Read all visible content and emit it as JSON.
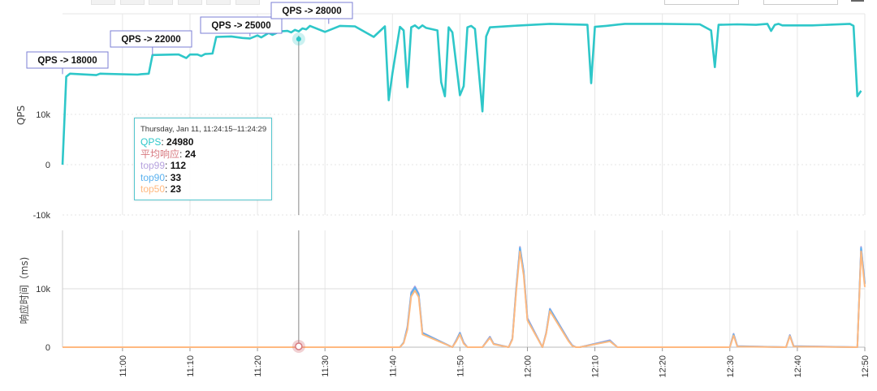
{
  "chart_data": [
    {
      "type": "line",
      "ylabel": "QPS",
      "ylim": [
        -10000,
        30000
      ],
      "y_ticks": [
        {
          "value": 10000,
          "label": "10k"
        },
        {
          "value": 0,
          "label": "0"
        },
        {
          "value": -10000,
          "label": "-10k"
        }
      ],
      "grid": true,
      "series": [
        {
          "name": "QPS",
          "color": "#2ec7c9",
          "x": [
            0,
            1,
            2,
            9,
            10,
            20,
            21,
            23,
            24,
            30,
            31,
            33,
            34,
            36,
            37,
            38,
            40,
            41,
            45,
            48,
            50,
            52,
            53,
            55,
            56,
            58,
            60,
            61,
            62,
            63,
            64,
            65,
            66,
            70,
            74,
            78,
            83,
            86,
            87,
            88,
            90,
            91,
            92,
            93,
            94,
            95,
            96,
            97,
            100,
            101,
            102,
            103,
            104,
            106,
            107,
            108,
            109,
            110,
            112,
            113,
            114,
            120,
            130,
            140,
            141,
            142,
            145,
            150,
            160,
            170,
            173,
            174,
            175,
            180,
            185,
            188,
            189,
            190,
            191,
            192,
            200,
            210,
            211,
            212,
            213
          ],
          "values": [
            0,
            17500,
            18100,
            17800,
            18100,
            17900,
            18000,
            18100,
            21800,
            21900,
            21900,
            21200,
            21900,
            21900,
            21600,
            22000,
            22100,
            25400,
            25500,
            25200,
            25100,
            25700,
            25300,
            26200,
            25800,
            26500,
            26600,
            26300,
            26800,
            26500,
            27100,
            26900,
            27600,
            26400,
            27600,
            27500,
            25400,
            27500,
            12800,
            18200,
            27400,
            26700,
            15400,
            27300,
            27700,
            27100,
            27700,
            27200,
            26700,
            16400,
            13600,
            27300,
            26300,
            13800,
            15600,
            27300,
            27600,
            27000,
            10600,
            25500,
            27300,
            27600,
            28000,
            27800,
            16200,
            27400,
            27600,
            28000,
            28000,
            27900,
            26700,
            19400,
            27800,
            27900,
            27800,
            28000,
            26600,
            27800,
            28000,
            27700,
            27700,
            28000,
            27600,
            13600,
            14700
          ]
        }
      ]
    },
    {
      "type": "line",
      "ylabel": "响应时间（ms)",
      "ylim": [
        0,
        20000
      ],
      "y_ticks": [
        {
          "value": 10000,
          "label": "10k"
        },
        {
          "value": 0,
          "label": "0"
        }
      ],
      "x_ticks": [
        "11:00",
        "11:10",
        "11:20",
        "11:30",
        "11:40",
        "11:50",
        "12:00",
        "12:10",
        "12:20",
        "12:30",
        "12:40",
        "12:50"
      ],
      "grid": true,
      "series": [
        {
          "name": "top99",
          "color": "#b6a2de",
          "x": [
            0,
            90,
            91,
            92,
            93,
            94,
            95,
            96,
            104,
            105,
            106,
            107,
            108,
            112,
            113,
            114,
            115,
            119,
            120,
            121,
            122,
            123,
            124,
            128,
            129,
            130,
            135,
            136,
            137,
            138,
            146,
            147,
            148,
            178,
            179,
            180,
            193,
            194,
            195,
            212,
            213,
            214
          ],
          "values": [
            0,
            0,
            800,
            3500,
            9400,
            10400,
            9200,
            2500,
            0,
            1200,
            2500,
            800,
            0,
            0,
            900,
            1800,
            600,
            0,
            1500,
            10000,
            17200,
            13000,
            5000,
            0,
            2500,
            6600,
            1200,
            300,
            0,
            0,
            1200,
            600,
            0,
            0,
            2300,
            200,
            0,
            2100,
            200,
            0,
            17200,
            11000
          ]
        },
        {
          "name": "top90",
          "color": "#5ab1ef",
          "x": [
            0,
            90,
            91,
            92,
            93,
            94,
            95,
            96,
            104,
            105,
            106,
            107,
            108,
            112,
            113,
            114,
            115,
            119,
            120,
            121,
            122,
            123,
            124,
            128,
            129,
            130,
            135,
            136,
            137,
            138,
            146,
            147,
            148,
            178,
            179,
            180,
            193,
            194,
            195,
            212,
            213,
            214
          ],
          "values": [
            0,
            0,
            800,
            3300,
            9200,
            10200,
            9000,
            2400,
            0,
            1100,
            2400,
            700,
            0,
            0,
            850,
            1700,
            550,
            0,
            1400,
            9800,
            17000,
            12800,
            4800,
            0,
            2400,
            6500,
            1100,
            250,
            0,
            0,
            1100,
            550,
            0,
            0,
            2200,
            150,
            0,
            2000,
            150,
            0,
            17000,
            10800
          ]
        },
        {
          "name": "top50",
          "color": "#ffb980",
          "x": [
            0,
            90,
            91,
            92,
            93,
            94,
            95,
            96,
            104,
            105,
            106,
            107,
            108,
            112,
            113,
            114,
            115,
            119,
            120,
            121,
            122,
            123,
            124,
            128,
            129,
            130,
            135,
            136,
            137,
            138,
            146,
            147,
            148,
            178,
            179,
            180,
            193,
            194,
            195,
            212,
            213,
            214
          ],
          "values": [
            0,
            0,
            700,
            3000,
            8700,
            9700,
            8600,
            2200,
            0,
            1000,
            2200,
            600,
            0,
            0,
            800,
            1600,
            500,
            0,
            1300,
            9400,
            16400,
            12300,
            4600,
            0,
            2300,
            6200,
            1000,
            200,
            0,
            0,
            1000,
            500,
            0,
            0,
            2000,
            100,
            0,
            1900,
            100,
            0,
            16400,
            10300
          ]
        }
      ]
    }
  ],
  "annotations": [
    {
      "label": "QPS -> 18000",
      "at_x": 0,
      "at_y": 18000
    },
    {
      "label": "QPS -> 22000",
      "at_x": 24,
      "at_y": 21800
    },
    {
      "label": "QPS -> 25000",
      "at_x": 50,
      "at_y": 25500
    },
    {
      "label": "QPS -> 28000",
      "at_x": 71,
      "at_y": 28000
    }
  ],
  "tooltip": {
    "header": "Thursday, Jan 11, 11:24:15–11:24:29",
    "items": [
      {
        "key": "QPS",
        "value": "24980",
        "color": "#2ec7c9"
      },
      {
        "key": "平均响应",
        "value": "24",
        "color": "#d87a80"
      },
      {
        "key": "top99",
        "value": "112",
        "color": "#b6a2de"
      },
      {
        "key": "top90",
        "value": "33",
        "color": "#5ab1ef"
      },
      {
        "key": "top50",
        "value": "23",
        "color": "#ffb980"
      }
    ],
    "cursor_x": 63
  }
}
